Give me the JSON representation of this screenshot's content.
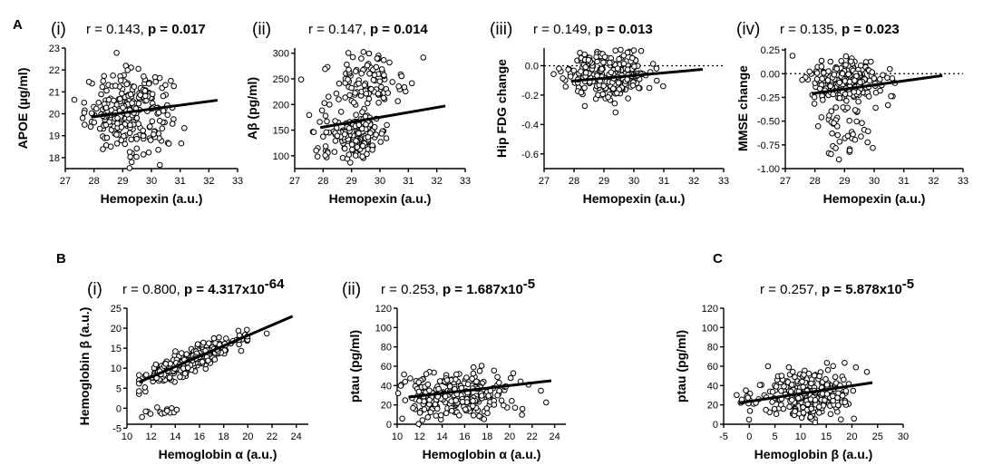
{
  "panel_letters": {
    "A": "A",
    "B": "B",
    "C": "C"
  },
  "chart_data": [
    {
      "id": "A-i",
      "type": "scatter",
      "sublabel": "(i)",
      "stat_plain": "r = 0.143, ",
      "stat_bold": "p = 0.017",
      "xlabel": "Hemopexin (a.u.)",
      "ylabel": "APOE (µg/ml)",
      "xlim": [
        27,
        33
      ],
      "ylim": [
        17.5,
        23
      ],
      "xticks": [
        27,
        28,
        29,
        30,
        31,
        32,
        33
      ],
      "yticks": [
        18,
        19,
        20,
        21,
        22,
        23
      ],
      "trend": {
        "x": [
          27.9,
          32.3
        ],
        "y": [
          19.85,
          20.62
        ]
      },
      "zero_line": false,
      "n_points": 260,
      "clouds": [
        {
          "cx": 29.2,
          "cy": 20.1,
          "sx": 0.75,
          "sy": 0.9
        }
      ],
      "color": "#000000"
    },
    {
      "id": "A-ii",
      "type": "scatter",
      "sublabel": "(ii)",
      "stat_plain": "r = 0.147, ",
      "stat_bold": "p = 0.014",
      "xlabel": "Hemopexin (a.u.)",
      "ylabel": "Aβ (pg/ml)",
      "xlim": [
        27,
        33
      ],
      "ylim": [
        75,
        310
      ],
      "xticks": [
        27,
        28,
        29,
        30,
        31,
        32,
        33
      ],
      "yticks": [
        100,
        150,
        200,
        250,
        300
      ],
      "trend": {
        "x": [
          27.9,
          32.3
        ],
        "y": [
          155,
          197
        ]
      },
      "zero_line": false,
      "n_points": 260,
      "clouds": [
        {
          "cx": 29.1,
          "cy": 140,
          "sx": 0.6,
          "sy": 22,
          "w": 0.6
        },
        {
          "cx": 29.4,
          "cy": 245,
          "sx": 0.7,
          "sy": 28,
          "w": 0.4
        }
      ],
      "color": "#000000"
    },
    {
      "id": "A-iii",
      "type": "scatter",
      "sublabel": "(iii)",
      "stat_plain": "r = 0.149, ",
      "stat_bold": "p = 0.013",
      "xlabel": "Hemopexin (a.u.)",
      "ylabel": "Hip FDG change",
      "xlim": [
        27,
        33
      ],
      "ylim": [
        -0.7,
        0.12
      ],
      "xticks": [
        27,
        28,
        29,
        30,
        31,
        32,
        33
      ],
      "yticks": [
        0.0,
        -0.2,
        -0.4,
        -0.6
      ],
      "ytick_labels": [
        "0.0",
        "-0.2",
        "-0.4",
        "-0.6"
      ],
      "trend": {
        "x": [
          27.9,
          32.3
        ],
        "y": [
          -0.105,
          -0.025
        ]
      },
      "zero_line": true,
      "n_points": 260,
      "clouds": [
        {
          "cx": 29.2,
          "cy": -0.06,
          "sx": 0.7,
          "sy": 0.08
        }
      ],
      "color": "#000000"
    },
    {
      "id": "A-iv",
      "type": "scatter",
      "sublabel": "(iv)",
      "stat_plain": "r = 0.135, ",
      "stat_bold": "p = 0.023",
      "xlabel": "Hemopexin (a.u.)",
      "ylabel": "MMSE change",
      "xlim": [
        27,
        33
      ],
      "ylim": [
        -1.0,
        0.27
      ],
      "xticks": [
        27,
        28,
        29,
        30,
        31,
        32,
        33
      ],
      "yticks": [
        0.25,
        0.0,
        -0.25,
        -0.5,
        -0.75,
        -1.0
      ],
      "ytick_labels": [
        "0.25",
        "0.00",
        "-0.25",
        "-0.50",
        "-0.75",
        "-1.00"
      ],
      "trend": {
        "x": [
          27.9,
          32.3
        ],
        "y": [
          -0.21,
          -0.02
        ]
      },
      "zero_line": true,
      "n_points": 260,
      "clouds": [
        {
          "cx": 29.1,
          "cy": -0.07,
          "sx": 0.65,
          "sy": 0.12,
          "w": 0.82
        },
        {
          "cx": 29.0,
          "cy": -0.55,
          "sx": 0.6,
          "sy": 0.18,
          "w": 0.18
        }
      ],
      "color": "#000000"
    },
    {
      "id": "B-i",
      "type": "scatter",
      "sublabel": "(i)",
      "stat_plain": "r = 0.800, ",
      "stat_bold": "p = 4.317x10",
      "stat_sup": "-64",
      "xlabel": "Hemoglobin α (a.u.)",
      "ylabel": "Hemoglobin β (a.u.)",
      "xlim": [
        10,
        25
      ],
      "ylim": [
        -4,
        25
      ],
      "xticks": [
        10,
        12,
        14,
        16,
        18,
        20,
        22,
        24
      ],
      "yticks": [
        -5,
        0,
        5,
        10,
        15,
        20,
        25
      ],
      "trend": {
        "x": [
          11.0,
          23.7
        ],
        "y": [
          6.5,
          23.0
        ]
      },
      "zero_line": false,
      "n_points": 300,
      "linear": {
        "slope": 1.3,
        "intercept": -7.8,
        "sd": 1.4,
        "xc": 14.5,
        "xs": 2.6
      },
      "clouds": [
        {
          "cx": 13.0,
          "cy": -0.8,
          "sx": 0.9,
          "sy": 0.8,
          "n": 14
        }
      ],
      "color": "#000000"
    },
    {
      "id": "B-ii",
      "type": "scatter",
      "sublabel": "(ii)",
      "stat_plain": "r = 0.253, ",
      "stat_bold": "p = 1.687x10",
      "stat_sup": "-5",
      "xlabel": "Hemoglobin α (a.u.)",
      "ylabel": "ptau (pg/ml)",
      "xlim": [
        10,
        25
      ],
      "ylim": [
        0,
        120
      ],
      "xticks": [
        10,
        12,
        14,
        16,
        18,
        20,
        22,
        24
      ],
      "yticks": [
        0,
        20,
        40,
        60,
        80,
        100,
        120
      ],
      "trend": {
        "x": [
          11.0,
          23.7
        ],
        "y": [
          28,
          45
        ]
      },
      "zero_line": false,
      "n_points": 280,
      "clouds": [
        {
          "cx": 15.0,
          "cy": 30,
          "sx": 2.6,
          "sy": 13
        }
      ],
      "color": "#000000"
    },
    {
      "id": "C",
      "type": "scatter",
      "sublabel": "",
      "stat_plain": "r = 0.257, ",
      "stat_bold": "p = 5.878x10",
      "stat_sup": "-5",
      "xlabel": "Hemoglobin β (a.u.)",
      "ylabel": "ptau (pg/ml)",
      "xlim": [
        -5,
        30
      ],
      "ylim": [
        0,
        120
      ],
      "xticks": [
        -5,
        0,
        5,
        10,
        15,
        20,
        25,
        30
      ],
      "yticks": [
        0,
        20,
        40,
        60,
        80,
        100,
        120
      ],
      "trend": {
        "x": [
          -2.0,
          24.0
        ],
        "y": [
          22,
          43
        ]
      },
      "zero_line": false,
      "n_points": 280,
      "clouds": [
        {
          "cx": 12.0,
          "cy": 30,
          "sx": 4.2,
          "sy": 13,
          "w": 0.95
        },
        {
          "cx": -0.5,
          "cy": 25,
          "sx": 1.2,
          "sy": 8,
          "w": 0.05
        }
      ],
      "color": "#000000"
    }
  ]
}
